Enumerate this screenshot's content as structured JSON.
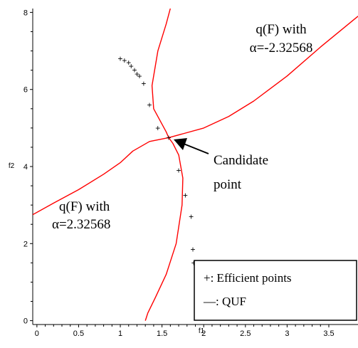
{
  "chart_data": {
    "type": "line",
    "xlabel": "f1",
    "ylabel": "f2",
    "xlim": [
      -0.05,
      3.85
    ],
    "ylim": [
      -0.1,
      8.1
    ],
    "x_ticks": [
      0,
      0.5,
      1,
      1.5,
      2,
      2.5,
      3,
      3.5
    ],
    "x_tick_labels": [
      "0",
      "0.5",
      "1",
      "1.5",
      "2",
      "2.5",
      "3",
      "3.5"
    ],
    "y_ticks": [
      0,
      2,
      4,
      6,
      8
    ],
    "y_tick_labels": [
      "0",
      "2",
      "4",
      "6",
      "8"
    ],
    "grid": false,
    "colors": {
      "curve": "#ff0000",
      "axis": "#000000",
      "marker": "#000000"
    },
    "efficient_points": {
      "marker": "+",
      "x": [
        1.0,
        1.05,
        1.1,
        1.13,
        1.17,
        1.2,
        1.23,
        1.28,
        1.35,
        1.45,
        1.58,
        1.7,
        1.78,
        1.85,
        1.87,
        1.88
      ],
      "y": [
        6.8,
        6.75,
        6.7,
        6.6,
        6.5,
        6.4,
        6.35,
        6.15,
        5.6,
        5.0,
        4.75,
        3.9,
        3.25,
        2.7,
        1.85,
        1.5
      ]
    },
    "series": [
      {
        "x": [
          -0.05,
          0.2,
          0.5,
          0.8,
          1.0,
          1.15,
          1.35,
          1.58,
          1.75,
          2.0,
          2.3,
          2.6,
          3.0,
          3.4,
          3.85
        ],
        "y": [
          2.75,
          3.05,
          3.4,
          3.8,
          4.1,
          4.4,
          4.65,
          4.75,
          4.85,
          5.0,
          5.3,
          5.7,
          6.35,
          7.1,
          7.9
        ]
      },
      {
        "x": [
          1.6,
          1.55,
          1.45,
          1.38,
          1.4,
          1.5,
          1.55,
          1.58,
          1.63,
          1.7,
          1.75,
          1.74,
          1.67,
          1.55,
          1.42,
          1.33,
          1.3
        ],
        "y": [
          8.1,
          7.7,
          7.0,
          6.1,
          5.5,
          5.1,
          4.9,
          4.75,
          4.6,
          4.3,
          3.7,
          3.0,
          2.0,
          1.2,
          0.6,
          0.2,
          0.0
        ]
      }
    ],
    "annotations": {
      "upper_label_line1": "q(F) with",
      "upper_label_line2": "α=-2.32568",
      "lower_label_line1": "q(F) with",
      "lower_label_line2": "α=2.32568",
      "candidate_line1": "Candidate",
      "candidate_line2": "point"
    },
    "legend": {
      "position": "bottom-right",
      "line1": "+: Efficient points",
      "line2": "—: QUF"
    }
  }
}
